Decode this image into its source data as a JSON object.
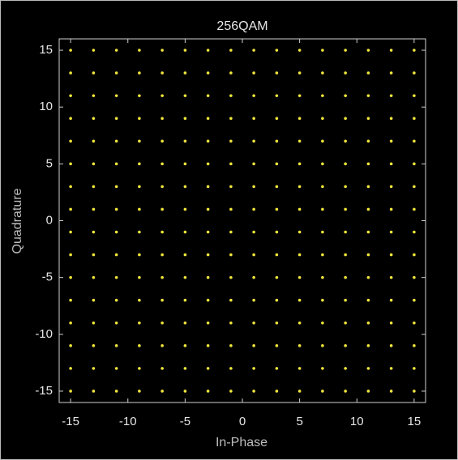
{
  "chart_data": {
    "type": "scatter",
    "title": "256QAM",
    "x_label": "In-Phase",
    "y_label": "Quadrature",
    "color": "#f0e63c",
    "xlim": [
      -16,
      16
    ],
    "ylim": [
      -16,
      16
    ],
    "xticks": [
      -15,
      -10,
      -5,
      0,
      5,
      10,
      15
    ],
    "yticks": [
      -15,
      -10,
      -5,
      0,
      5,
      10,
      15
    ],
    "x": [
      -15,
      -15,
      -15,
      -15,
      -15,
      -15,
      -15,
      -15,
      -15,
      -15,
      -15,
      -15,
      -15,
      -15,
      -15,
      -15,
      -13,
      -13,
      -13,
      -13,
      -13,
      -13,
      -13,
      -13,
      -13,
      -13,
      -13,
      -13,
      -13,
      -13,
      -13,
      -13,
      -11,
      -11,
      -11,
      -11,
      -11,
      -11,
      -11,
      -11,
      -11,
      -11,
      -11,
      -11,
      -11,
      -11,
      -11,
      -11,
      -9,
      -9,
      -9,
      -9,
      -9,
      -9,
      -9,
      -9,
      -9,
      -9,
      -9,
      -9,
      -9,
      -9,
      -9,
      -9,
      -7,
      -7,
      -7,
      -7,
      -7,
      -7,
      -7,
      -7,
      -7,
      -7,
      -7,
      -7,
      -7,
      -7,
      -7,
      -7,
      -5,
      -5,
      -5,
      -5,
      -5,
      -5,
      -5,
      -5,
      -5,
      -5,
      -5,
      -5,
      -5,
      -5,
      -5,
      -5,
      -3,
      -3,
      -3,
      -3,
      -3,
      -3,
      -3,
      -3,
      -3,
      -3,
      -3,
      -3,
      -3,
      -3,
      -3,
      -3,
      -1,
      -1,
      -1,
      -1,
      -1,
      -1,
      -1,
      -1,
      -1,
      -1,
      -1,
      -1,
      -1,
      -1,
      -1,
      -1,
      1,
      1,
      1,
      1,
      1,
      1,
      1,
      1,
      1,
      1,
      1,
      1,
      1,
      1,
      1,
      1,
      3,
      3,
      3,
      3,
      3,
      3,
      3,
      3,
      3,
      3,
      3,
      3,
      3,
      3,
      3,
      3,
      5,
      5,
      5,
      5,
      5,
      5,
      5,
      5,
      5,
      5,
      5,
      5,
      5,
      5,
      5,
      5,
      7,
      7,
      7,
      7,
      7,
      7,
      7,
      7,
      7,
      7,
      7,
      7,
      7,
      7,
      7,
      7,
      9,
      9,
      9,
      9,
      9,
      9,
      9,
      9,
      9,
      9,
      9,
      9,
      9,
      9,
      9,
      9,
      11,
      11,
      11,
      11,
      11,
      11,
      11,
      11,
      11,
      11,
      11,
      11,
      11,
      11,
      11,
      11,
      13,
      13,
      13,
      13,
      13,
      13,
      13,
      13,
      13,
      13,
      13,
      13,
      13,
      13,
      13,
      13,
      15,
      15,
      15,
      15,
      15,
      15,
      15,
      15,
      15,
      15,
      15,
      15,
      15,
      15,
      15,
      15
    ],
    "values": [
      -15,
      -13,
      -11,
      -9,
      -7,
      -5,
      -3,
      -1,
      1,
      3,
      5,
      7,
      9,
      11,
      13,
      15,
      -15,
      -13,
      -11,
      -9,
      -7,
      -5,
      -3,
      -1,
      1,
      3,
      5,
      7,
      9,
      11,
      13,
      15,
      -15,
      -13,
      -11,
      -9,
      -7,
      -5,
      -3,
      -1,
      1,
      3,
      5,
      7,
      9,
      11,
      13,
      15,
      -15,
      -13,
      -11,
      -9,
      -7,
      -5,
      -3,
      -1,
      1,
      3,
      5,
      7,
      9,
      11,
      13,
      15,
      -15,
      -13,
      -11,
      -9,
      -7,
      -5,
      -3,
      -1,
      1,
      3,
      5,
      7,
      9,
      11,
      13,
      15,
      -15,
      -13,
      -11,
      -9,
      -7,
      -5,
      -3,
      -1,
      1,
      3,
      5,
      7,
      9,
      11,
      13,
      15,
      -15,
      -13,
      -11,
      -9,
      -7,
      -5,
      -3,
      -1,
      1,
      3,
      5,
      7,
      9,
      11,
      13,
      15,
      -15,
      -13,
      -11,
      -9,
      -7,
      -5,
      -3,
      -1,
      1,
      3,
      5,
      7,
      9,
      11,
      13,
      15,
      -15,
      -13,
      -11,
      -9,
      -7,
      -5,
      -3,
      -1,
      1,
      3,
      5,
      7,
      9,
      11,
      13,
      15,
      -15,
      -13,
      -11,
      -9,
      -7,
      -5,
      -3,
      -1,
      1,
      3,
      5,
      7,
      9,
      11,
      13,
      15,
      -15,
      -13,
      -11,
      -9,
      -7,
      -5,
      -3,
      -1,
      1,
      3,
      5,
      7,
      9,
      11,
      13,
      15,
      -15,
      -13,
      -11,
      -9,
      -7,
      -5,
      -3,
      -1,
      1,
      3,
      5,
      7,
      9,
      11,
      13,
      15,
      -15,
      -13,
      -11,
      -9,
      -7,
      -5,
      -3,
      -1,
      1,
      3,
      5,
      7,
      9,
      11,
      13,
      15,
      -15,
      -13,
      -11,
      -9,
      -7,
      -5,
      -3,
      -1,
      1,
      3,
      5,
      7,
      9,
      11,
      13,
      15,
      -15,
      -13,
      -11,
      -9,
      -7,
      -5,
      -3,
      -1,
      1,
      3,
      5,
      7,
      9,
      11,
      13,
      15,
      -15,
      -13,
      -11,
      -9,
      -7,
      -5,
      -3,
      -1,
      1,
      3,
      5,
      7,
      9,
      11,
      13,
      15
    ]
  }
}
